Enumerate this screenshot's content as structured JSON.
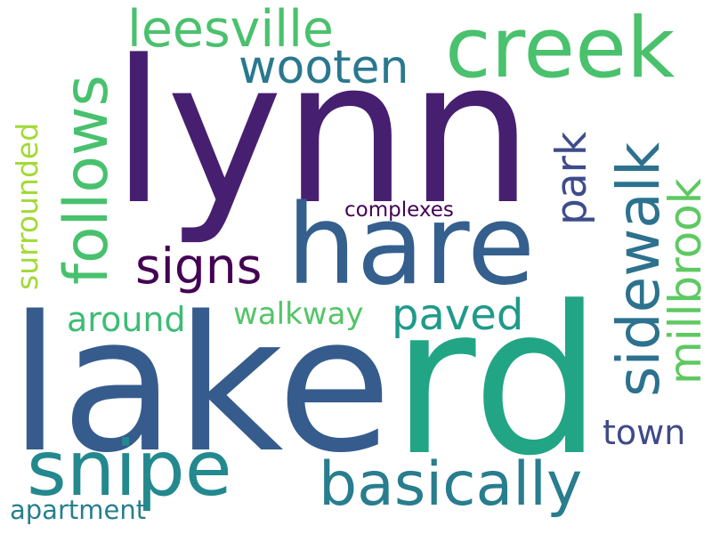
{
  "words": [
    {
      "id": "lynn",
      "text": "lynn",
      "color": "#471f70"
    },
    {
      "id": "lake",
      "text": "lake",
      "color": "#365c8d"
    },
    {
      "id": "rd",
      "text": "rd",
      "color": "#21a585"
    },
    {
      "id": "hare",
      "text": "hare",
      "color": "#355f8d"
    },
    {
      "id": "creek",
      "text": "creek",
      "color": "#4ac16d"
    },
    {
      "id": "snipe",
      "text": "snipe",
      "color": "#23898e"
    },
    {
      "id": "follows",
      "text": "follows",
      "color": "#48c16e"
    },
    {
      "id": "basically",
      "text": "basically",
      "color": "#287d8e"
    },
    {
      "id": "sidewalk",
      "text": "sidewalk",
      "color": "#2c728e"
    },
    {
      "id": "millbrook",
      "text": "millbrook",
      "color": "#5ec962"
    },
    {
      "id": "leesville",
      "text": "leesville",
      "color": "#4ac16d"
    },
    {
      "id": "wooten",
      "text": "wooten",
      "color": "#2a788e"
    },
    {
      "id": "park",
      "text": "park",
      "color": "#3e4c8a"
    },
    {
      "id": "signs",
      "text": "signs",
      "color": "#440154"
    },
    {
      "id": "paved",
      "text": "paved",
      "color": "#1f9a8a"
    },
    {
      "id": "walkway",
      "text": "walkway",
      "color": "#54c568"
    },
    {
      "id": "around",
      "text": "around",
      "color": "#3dbc74"
    },
    {
      "id": "surrounded",
      "text": "surrounded",
      "color": "#a2da37"
    },
    {
      "id": "town",
      "text": "town",
      "color": "#3e4a89"
    },
    {
      "id": "apartment",
      "text": "apartment",
      "color": "#277f8e"
    },
    {
      "id": "complexes",
      "text": "complexes",
      "color": "#440154"
    }
  ]
}
